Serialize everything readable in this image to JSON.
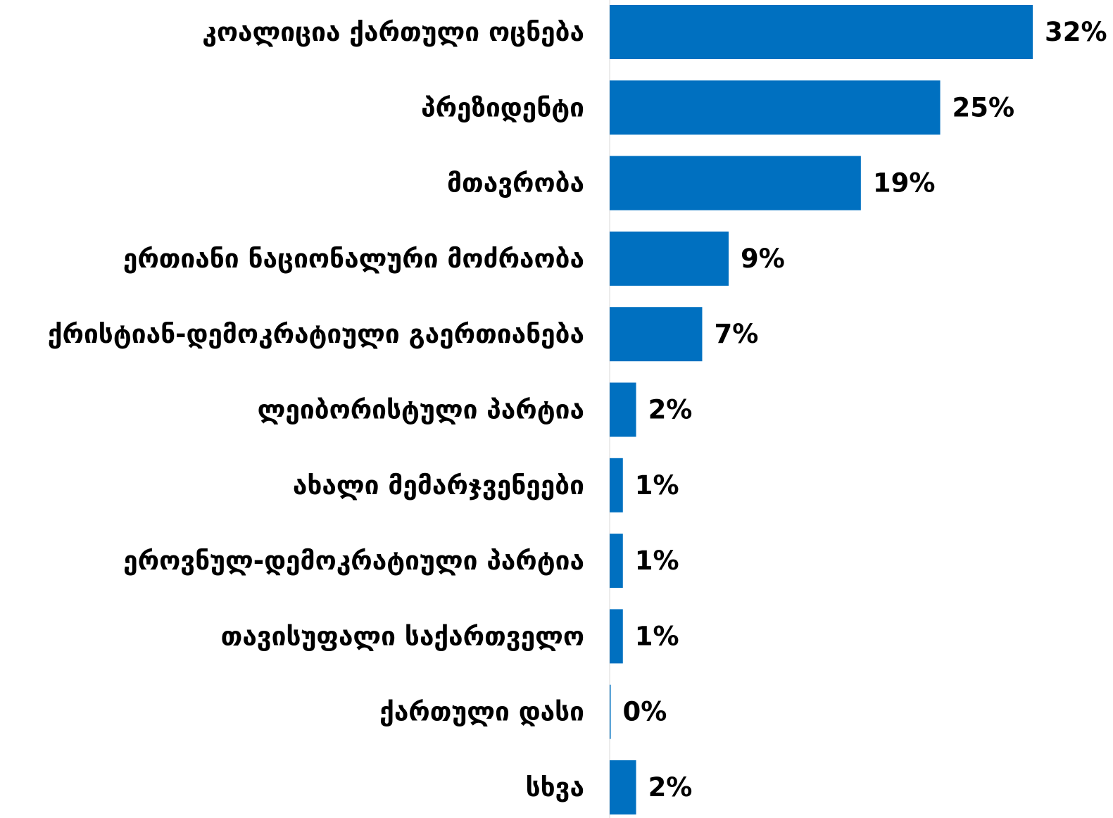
{
  "chart_data": {
    "type": "bar",
    "orientation": "horizontal",
    "categories": [
      "კოალიცია ქართული ოცნება",
      "პრეზიდენტი",
      "მთავრობა",
      "ერთიანი ნაციონალური მოძრაობა",
      "ქრისტიან-დემოკრატიული გაერთიანება",
      "ლეიბორისტული პარტია",
      "ახალი მემარჯვენეები",
      "ეროვნულ-დემოკრატიული პარტია",
      "თავისუფალი საქართველო",
      "ქართული დასი",
      "სხვა"
    ],
    "values": [
      32,
      25,
      19,
      9,
      7,
      2,
      1,
      1,
      1,
      0,
      2
    ],
    "value_labels": [
      "32%",
      "25%",
      "19%",
      "9%",
      "7%",
      "2%",
      "1%",
      "1%",
      "1%",
      "0%",
      "2%"
    ],
    "unit": "%",
    "xlim": [
      0,
      32
    ],
    "bar_color": "#0070C0",
    "grid": false,
    "legend": "none"
  }
}
